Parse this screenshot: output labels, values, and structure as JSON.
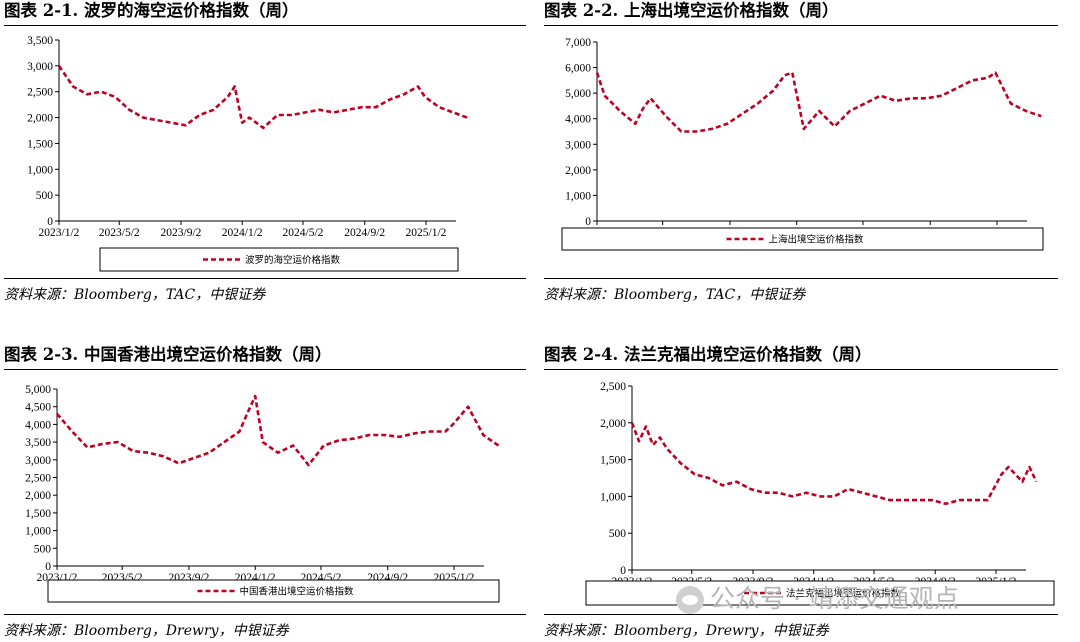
{
  "panels": [
    {
      "title": "图表 2-1. 波罗的海空运价格指数（周）",
      "source": "资料来源：Bloomberg，TAC，中银证券",
      "chart": {
        "type": "line",
        "color": "#c00020",
        "ylim": [
          0,
          3500
        ],
        "yticks": [
          "0",
          "500",
          "1,000",
          "1,500",
          "2,000",
          "2,500",
          "3,000",
          "3,500"
        ],
        "xticks": [
          "2023/1/2",
          "2023/5/2",
          "2023/9/2",
          "2024/1/2",
          "2024/5/2",
          "2024/9/2",
          "2025/1/2"
        ],
        "legend": "波罗的海空运价格指数",
        "series": [
          {
            "name": "波罗的海空运价格指数",
            "x": [
              "2023/1/2",
              "2023/1/30",
              "2023/2/27",
              "2023/3/27",
              "2023/4/24",
              "2023/5/22",
              "2023/6/19",
              "2023/7/17",
              "2023/8/14",
              "2023/9/11",
              "2023/10/9",
              "2023/11/6",
              "2023/12/4",
              "2023/12/18",
              "2024/1/2",
              "2024/1/16",
              "2024/2/13",
              "2024/3/12",
              "2024/4/9",
              "2024/5/7",
              "2024/6/4",
              "2024/7/2",
              "2024/7/30",
              "2024/8/27",
              "2024/9/24",
              "2024/10/22",
              "2024/11/19",
              "2024/12/17",
              "2024/12/31",
              "2025/1/28",
              "2025/2/25",
              "2025/3/25"
            ],
            "values": [
              3000,
              2600,
              2450,
              2500,
              2400,
              2150,
              2000,
              1950,
              1900,
              1850,
              2050,
              2150,
              2400,
              2600,
              1900,
              2000,
              1800,
              2050,
              2050,
              2100,
              2150,
              2100,
              2150,
              2200,
              2200,
              2350,
              2450,
              2600,
              2400,
              2200,
              2100,
              2000
            ]
          }
        ]
      }
    },
    {
      "title": "图表 2-2. 上海出境空运价格指数（周）",
      "source": "资料来源：Bloomberg，TAC，中银证券",
      "chart": {
        "type": "line",
        "color": "#c00020",
        "ylim": [
          0,
          7000
        ],
        "yticks": [
          "0",
          "1,000",
          "2,000",
          "3,000",
          "4,000",
          "5,000",
          "6,000",
          "7,000"
        ],
        "xticks": [
          "2023/1/2",
          "2023/5/2",
          "2023/9/2",
          "2024/1/2",
          "2024/5/2",
          "2024/9/2",
          "2025/1/2"
        ],
        "legend": "上海出境空运价格指数",
        "series": [
          {
            "name": "上海出境空运价格指数",
            "x": [
              "2023/1/2",
              "2023/1/16",
              "2023/2/13",
              "2023/3/13",
              "2023/3/27",
              "2023/4/10",
              "2023/5/8",
              "2023/6/5",
              "2023/7/3",
              "2023/7/31",
              "2023/8/28",
              "2023/9/25",
              "2023/10/23",
              "2023/11/20",
              "2023/12/11",
              "2023/12/25",
              "2024/1/15",
              "2024/2/12",
              "2024/3/11",
              "2024/4/8",
              "2024/5/6",
              "2024/6/3",
              "2024/7/1",
              "2024/7/29",
              "2024/8/26",
              "2024/9/23",
              "2024/10/21",
              "2024/11/18",
              "2024/12/16",
              "2024/12/30",
              "2025/1/27",
              "2025/2/24",
              "2025/3/24"
            ],
            "values": [
              5800,
              4900,
              4300,
              3800,
              4400,
              4800,
              4100,
              3500,
              3500,
              3600,
              3800,
              4200,
              4600,
              5100,
              5700,
              5800,
              3600,
              4300,
              3700,
              4300,
              4600,
              4900,
              4700,
              4800,
              4800,
              4900,
              5200,
              5500,
              5600,
              5800,
              4600,
              4300,
              4100
            ]
          }
        ]
      }
    },
    {
      "title": "图表 2-3. 中国香港出境空运价格指数（周）",
      "source": "资料来源：Bloomberg，Drewry，中银证券",
      "chart": {
        "type": "line",
        "color": "#c00020",
        "ylim": [
          0,
          5000
        ],
        "yticks": [
          "0",
          "500",
          "1,000",
          "1,500",
          "2,000",
          "2,500",
          "3,000",
          "3,500",
          "4,000",
          "4,500",
          "5,000"
        ],
        "xticks": [
          "2023/1/2",
          "2023/5/2",
          "2023/9/2",
          "2024/1/2",
          "2024/5/2",
          "2024/9/2",
          "2025/1/2"
        ],
        "legend": "中国香港出境空运价格指数",
        "series": [
          {
            "name": "中国香港出境空运价格指数",
            "x": [
              "2023/1/2",
              "2023/1/30",
              "2023/2/27",
              "2023/3/27",
              "2023/4/24",
              "2023/5/22",
              "2023/6/19",
              "2023/7/17",
              "2023/8/14",
              "2023/9/11",
              "2023/10/9",
              "2023/11/6",
              "2023/12/4",
              "2023/12/18",
              "2024/1/2",
              "2024/1/16",
              "2024/2/13",
              "2024/3/12",
              "2024/4/9",
              "2024/5/7",
              "2024/6/4",
              "2024/7/2",
              "2024/7/30",
              "2024/8/27",
              "2024/9/24",
              "2024/10/22",
              "2024/11/19",
              "2024/12/17",
              "2024/12/31",
              "2025/1/28",
              "2025/2/25",
              "2025/3/25"
            ],
            "values": [
              4300,
              3800,
              3350,
              3450,
              3500,
              3250,
              3200,
              3100,
              2900,
              3050,
              3200,
              3500,
              3800,
              4300,
              4800,
              3500,
              3200,
              3400,
              2850,
              3400,
              3550,
              3600,
              3700,
              3700,
              3650,
              3750,
              3800,
              3800,
              4000,
              4500,
              3700,
              3400
            ]
          }
        ]
      }
    },
    {
      "title": "图表 2-4. 法兰克福出境空运价格指数（周）",
      "source": "资料来源：Bloomberg，Drewry，中银证券",
      "chart": {
        "type": "line",
        "color": "#c00020",
        "ylim": [
          0,
          2500
        ],
        "yticks": [
          "0",
          "500",
          "1,000",
          "1,500",
          "2,000",
          "2,500"
        ],
        "xticks": [
          "2023/1/2",
          "2023/5/2",
          "2023/9/2",
          "2024/1/2",
          "2024/5/2",
          "2024/9/2",
          "2025/1/2"
        ],
        "legend": "法兰克福出境空运价格指数",
        "series": [
          {
            "name": "法兰克福出境空运价格指数",
            "x": [
              "2023/1/2",
              "2023/1/16",
              "2023/1/30",
              "2023/2/13",
              "2023/2/27",
              "2023/3/13",
              "2023/3/27",
              "2023/4/10",
              "2023/5/8",
              "2023/6/5",
              "2023/7/3",
              "2023/7/31",
              "2023/8/28",
              "2023/9/25",
              "2023/10/23",
              "2023/11/20",
              "2023/12/18",
              "2024/1/15",
              "2024/2/12",
              "2024/3/11",
              "2024/4/8",
              "2024/5/6",
              "2024/6/3",
              "2024/7/1",
              "2024/7/29",
              "2024/8/26",
              "2024/9/23",
              "2024/10/21",
              "2024/11/18",
              "2024/12/16",
              "2025/1/13",
              "2025/1/27",
              "2025/2/10",
              "2025/2/24",
              "2025/3/10",
              "2025/3/24"
            ],
            "values": [
              2000,
              1750,
              1950,
              1700,
              1800,
              1650,
              1550,
              1450,
              1300,
              1250,
              1150,
              1200,
              1100,
              1050,
              1050,
              1000,
              1050,
              1000,
              1000,
              1100,
              1050,
              1000,
              950,
              950,
              950,
              950,
              900,
              950,
              950,
              950,
              1300,
              1400,
              1300,
              1200,
              1400,
              1200
            ]
          }
        ]
      }
    }
  ],
  "watermark": "公众号 · 靖添交通观点"
}
